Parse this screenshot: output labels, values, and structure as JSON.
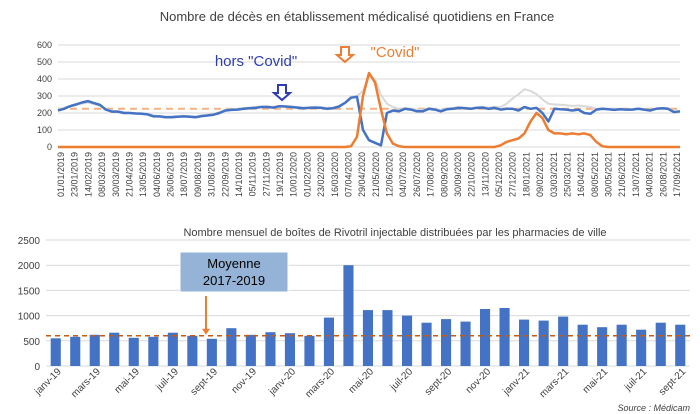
{
  "colors": {
    "series_blue": "#4472C4",
    "series_orange": "#ED7D31",
    "series_grey": "#D9D9D9",
    "dashed_reference": "#F4B183",
    "red_reference": "#C55A11",
    "annotation_blue": "#2E3CB5",
    "annotation_orange": "#ED7D31",
    "callout_fill": "#95B3D7",
    "grid": "#D9D9D9",
    "text": "#404040"
  },
  "chart_data": [
    {
      "type": "line",
      "title": "Nombre de décès en établissement médicalisé quotidiens en France",
      "xlabel": "",
      "ylabel": "",
      "ylim": [
        0,
        600
      ],
      "yticks": [
        "0",
        "100",
        "200",
        "300",
        "400",
        "500",
        "600"
      ],
      "grid": true,
      "legend": "none",
      "x_tick_labels": [
        "01/01/2019",
        "23/01/2019",
        "14/02/2019",
        "08/03/2019",
        "30/03/2019",
        "21/04/2019",
        "13/05/2019",
        "04/06/2019",
        "26/06/2019",
        "18/07/2019",
        "09/08/2019",
        "31/08/2019",
        "22/09/2019",
        "14/10/2019",
        "05/11/2019",
        "27/11/2019",
        "19/12/2019",
        "10/01/2020",
        "01/02/2020",
        "23/02/2020",
        "16/03/2020",
        "07/04/2020",
        "29/04/2020",
        "21/05/2020",
        "12/06/2020",
        "04/07/2020",
        "26/07/2020",
        "17/08/2020",
        "08/09/2020",
        "30/09/2020",
        "22/10/2020",
        "13/11/2020",
        "05/12/2020",
        "27/12/2020",
        "18/01/2021",
        "09/02/2021",
        "03/03/2021",
        "25/03/2021",
        "16/04/2021",
        "08/05/2021",
        "30/05/2021",
        "21/06/2021",
        "13/07/2021",
        "04/08/2021",
        "26/08/2021",
        "17/09/2021"
      ],
      "series": [
        {
          "values": [
            215,
            225,
            240,
            250,
            262,
            270,
            258,
            248,
            220,
            208,
            208,
            200,
            200,
            197,
            195,
            192,
            180,
            180,
            175,
            175,
            178,
            180,
            178,
            175,
            182,
            185,
            190,
            200,
            215,
            218,
            220,
            225,
            228,
            230,
            235,
            235,
            232,
            240,
            238,
            235,
            232,
            228,
            230,
            232,
            230,
            225,
            228,
            238,
            260,
            290,
            295,
            100,
            40,
            25,
            10,
            200,
            215,
            210,
            225,
            220,
            210,
            210,
            225,
            220,
            210,
            222,
            225,
            230,
            228,
            225,
            230,
            232,
            225,
            230,
            220,
            225,
            225,
            215,
            235,
            225,
            230,
            200,
            150,
            225,
            222,
            220,
            215,
            220,
            200,
            195,
            220,
            225,
            222,
            218,
            222,
            220,
            220,
            225,
            220,
            215,
            225,
            228,
            225,
            205,
            210
          ]
        },
        {
          "values": [
            0,
            0,
            0,
            0,
            0,
            0,
            0,
            0,
            0,
            0,
            0,
            0,
            0,
            0,
            0,
            0,
            0,
            0,
            0,
            0,
            0,
            0,
            0,
            0,
            0,
            0,
            0,
            0,
            0,
            0,
            0,
            0,
            0,
            0,
            0,
            0,
            0,
            0,
            0,
            0,
            0,
            0,
            0,
            0,
            0,
            0,
            0,
            0,
            0,
            5,
            60,
            300,
            435,
            380,
            220,
            80,
            20,
            5,
            0,
            0,
            0,
            0,
            0,
            0,
            0,
            0,
            0,
            0,
            0,
            0,
            0,
            0,
            0,
            0,
            10,
            30,
            40,
            50,
            80,
            150,
            200,
            170,
            100,
            80,
            80,
            75,
            80,
            75,
            80,
            70,
            30,
            5,
            0,
            0,
            0,
            0,
            0,
            0,
            0,
            0,
            0,
            0,
            0,
            0,
            0
          ]
        },
        {
          "values": [
            220,
            230,
            238,
            245,
            255,
            262,
            252,
            242,
            225,
            212,
            210,
            205,
            202,
            200,
            198,
            195,
            185,
            182,
            180,
            180,
            182,
            184,
            182,
            180,
            186,
            190,
            194,
            205,
            220,
            222,
            225,
            228,
            232,
            235,
            238,
            240,
            236,
            242,
            240,
            238,
            235,
            232,
            234,
            236,
            234,
            230,
            232,
            242,
            262,
            298,
            300,
            330,
            420,
            400,
            305,
            255,
            235,
            225,
            228,
            225,
            220,
            218,
            228,
            225,
            218,
            226,
            230,
            235,
            232,
            228,
            234,
            236,
            232,
            236,
            235,
            255,
            285,
            310,
            340,
            330,
            310,
            280,
            255,
            250,
            248,
            246,
            242,
            244,
            240,
            235,
            225,
            222,
            225,
            225,
            225,
            222,
            222,
            226,
            222,
            218,
            226,
            230,
            228,
            210,
            212
          ]
        }
      ],
      "reference_line": 225
    },
    {
      "type": "bar",
      "title": "Nombre mensuel de boîtes de Rivotril injectable distribuées par les pharmacies de ville",
      "xlabel": "",
      "ylabel": "",
      "ylim": [
        0,
        2500
      ],
      "yticks": [
        "0",
        "500",
        "1000",
        "1500",
        "2000",
        "2500"
      ],
      "grid": true,
      "legend": "none",
      "categories": [
        "janv-19",
        "févr-19",
        "mars-19",
        "avr-19",
        "mai-19",
        "juin-19",
        "juil-19",
        "août-19",
        "sept-19",
        "oct-19",
        "nov-19",
        "déc-19",
        "janv-20",
        "févr-20",
        "mars-20",
        "avr-20",
        "mai-20",
        "juin-20",
        "juil-20",
        "août-20",
        "sept-20",
        "oct-20",
        "nov-20",
        "déc-20",
        "janv-21",
        "févr-21",
        "mars-21",
        "avr-21",
        "mai-21",
        "juin-21",
        "juil-21",
        "août-21",
        "sept-21"
      ],
      "category_labels_shown": [
        "janv-19",
        "mars-19",
        "mai-19",
        "juil-19",
        "sept-19",
        "nov-19",
        "janv-20",
        "mars-20",
        "mai-20",
        "juil-20",
        "sept-20",
        "nov-20",
        "janv-21",
        "mars-21",
        "mai-21",
        "juil-21",
        "sept-21"
      ],
      "values": [
        550,
        580,
        620,
        660,
        560,
        580,
        660,
        600,
        540,
        750,
        620,
        670,
        650,
        600,
        960,
        2000,
        1110,
        1110,
        1000,
        860,
        930,
        880,
        1130,
        1150,
        920,
        900,
        980,
        820,
        770,
        820,
        720,
        860,
        820
      ],
      "reference_line": 600
    }
  ],
  "annotations": {
    "hors_covid": "hors \"Covid\"",
    "covid": "\"Covid\"",
    "moyenne_line1": "Moyenne",
    "moyenne_line2": "2017-2019"
  },
  "source": "Source : Médicam"
}
